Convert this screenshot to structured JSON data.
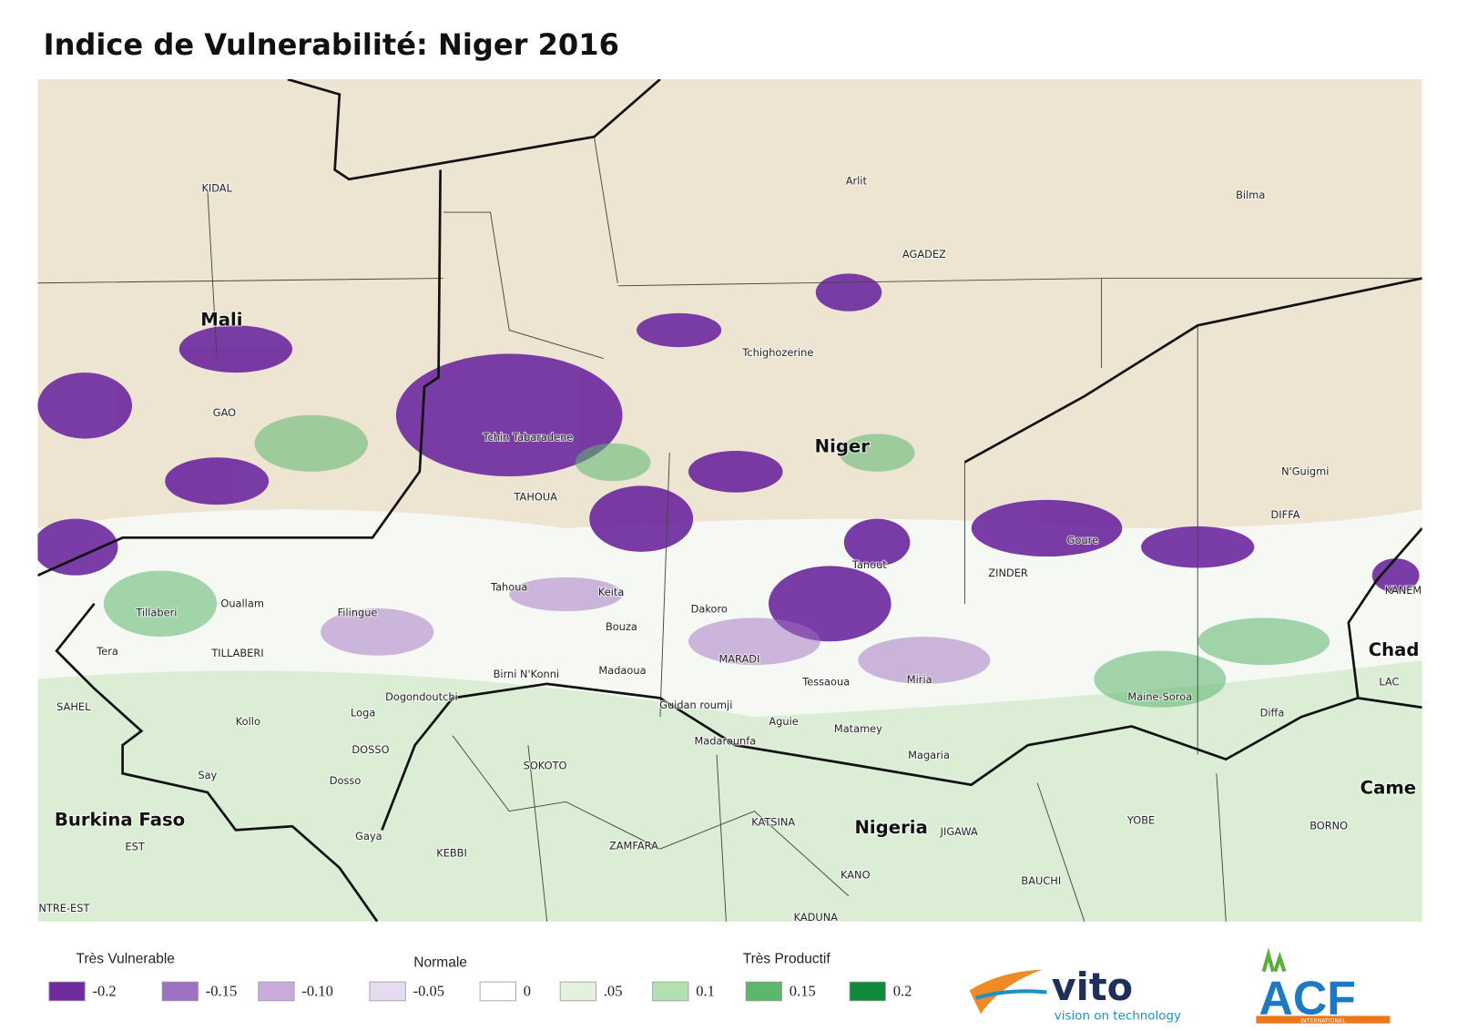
{
  "header": {
    "title": "Indice de Vulnerabilité: Niger 2016"
  },
  "map": {
    "labels": [
      "Mali",
      "KIDAL",
      "GAO",
      "Tchin Tabaradene",
      "TAHOUA",
      "Niger",
      "Arlit",
      "AGADEZ",
      "Bilma",
      "Tchighozerine",
      "N'Guigmi",
      "DIFFA",
      "Goure",
      "ZINDER",
      "Tanout",
      "KANEM",
      "Chad",
      "LAC",
      "Maine-Soroa",
      "Diffa",
      "Miria",
      "Tessaoua",
      "MARADI",
      "Dakoro",
      "Keita",
      "Bouza",
      "Tahoua",
      "Madaoua",
      "Birni N'Konni",
      "Guidan roumji",
      "Aguie",
      "Matamey",
      "Madarounfa",
      "Magaria",
      "Dogondoutchi",
      "Loga",
      "DOSSO",
      "Dosso",
      "Filingue",
      "Ouallam",
      "Tillaberi",
      "TILLABERI",
      "Tera",
      "SAHEL",
      "Kollo",
      "Say",
      "Burkina Faso",
      "EST",
      "NTRE-EST",
      "Gaya",
      "KEBBI",
      "SOKOTO",
      "ZAMFARA",
      "KATSINA",
      "Nigeria",
      "JIGAWA",
      "KANO",
      "KADUNA",
      "BAUCHI",
      "YOBE",
      "BORNO",
      "Came"
    ]
  },
  "legend": {
    "headings": [
      "Très Vulnerable",
      "Normale",
      "Très Productif"
    ],
    "items": [
      {
        "label": "-0.2",
        "color": "#6f2c9f"
      },
      {
        "label": "-0.15",
        "color": "#9f72c1"
      },
      {
        "label": "-0.10",
        "color": "#c9abdd"
      },
      {
        "label": "-0.05",
        "color": "#e5dcf0"
      },
      {
        "label": "0",
        "color": "#ffffff"
      },
      {
        "label": ".05",
        "color": "#e3f2df"
      },
      {
        "label": "0.1",
        "color": "#b3e0ae"
      },
      {
        "label": "0.15",
        "color": "#5cb66e"
      },
      {
        "label": "0.2",
        "color": "#118a3b"
      }
    ]
  },
  "logos": {
    "vito": "vito",
    "vito_tagline": "vision on technology",
    "acf": "ACF",
    "acf_sub": "INTERNATIONAL"
  }
}
